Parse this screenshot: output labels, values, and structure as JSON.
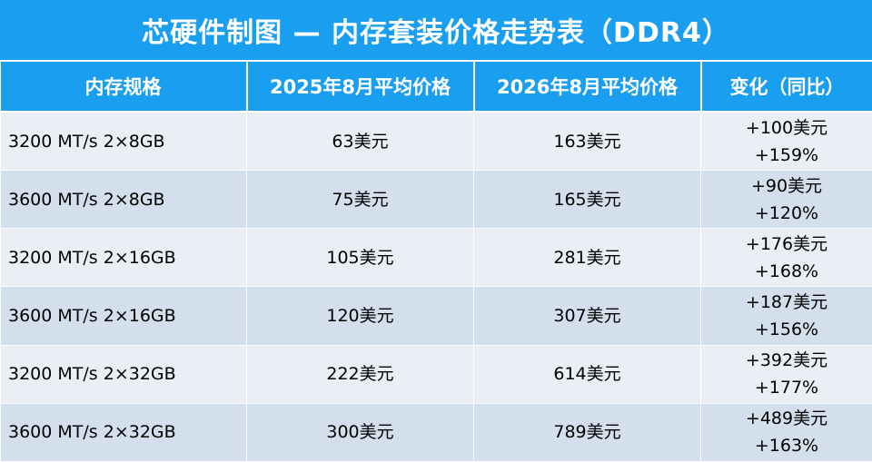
{
  "title": "芯硬件制图 — 内存套装价格走势表（DDR4）",
  "colors": {
    "header_bg": "#1a9ef0",
    "header_text": "#ffffff",
    "row_odd_bg": "#eaeff5",
    "row_even_bg": "#d3dfec"
  },
  "chart_data": {
    "type": "table",
    "title": "芯硬件制图 — 内存套装价格走势表（DDR4）",
    "columns": [
      "内存规格",
      "2025年8月平均价格",
      "2026年8月平均价格",
      "变化（同比）"
    ],
    "rows": [
      {
        "spec": "3200 MT/s 2×8GB",
        "price_2025": "63美元",
        "price_2026": "163美元",
        "change_abs": "+100美元",
        "change_pct": "+159%"
      },
      {
        "spec": "3600 MT/s 2×8GB",
        "price_2025": "75美元",
        "price_2026": "165美元",
        "change_abs": "+90美元",
        "change_pct": "+120%"
      },
      {
        "spec": "3200 MT/s 2×16GB",
        "price_2025": "105美元",
        "price_2026": "281美元",
        "change_abs": "+176美元",
        "change_pct": "+168%"
      },
      {
        "spec": "3600 MT/s 2×16GB",
        "price_2025": "120美元",
        "price_2026": "307美元",
        "change_abs": "+187美元",
        "change_pct": "+156%"
      },
      {
        "spec": "3200 MT/s 2×32GB",
        "price_2025": "222美元",
        "price_2026": "614美元",
        "change_abs": "+392美元",
        "change_pct": "+177%"
      },
      {
        "spec": "3600 MT/s 2×32GB",
        "price_2025": "300美元",
        "price_2026": "789美元",
        "change_abs": "+489美元",
        "change_pct": "+163%"
      }
    ]
  }
}
